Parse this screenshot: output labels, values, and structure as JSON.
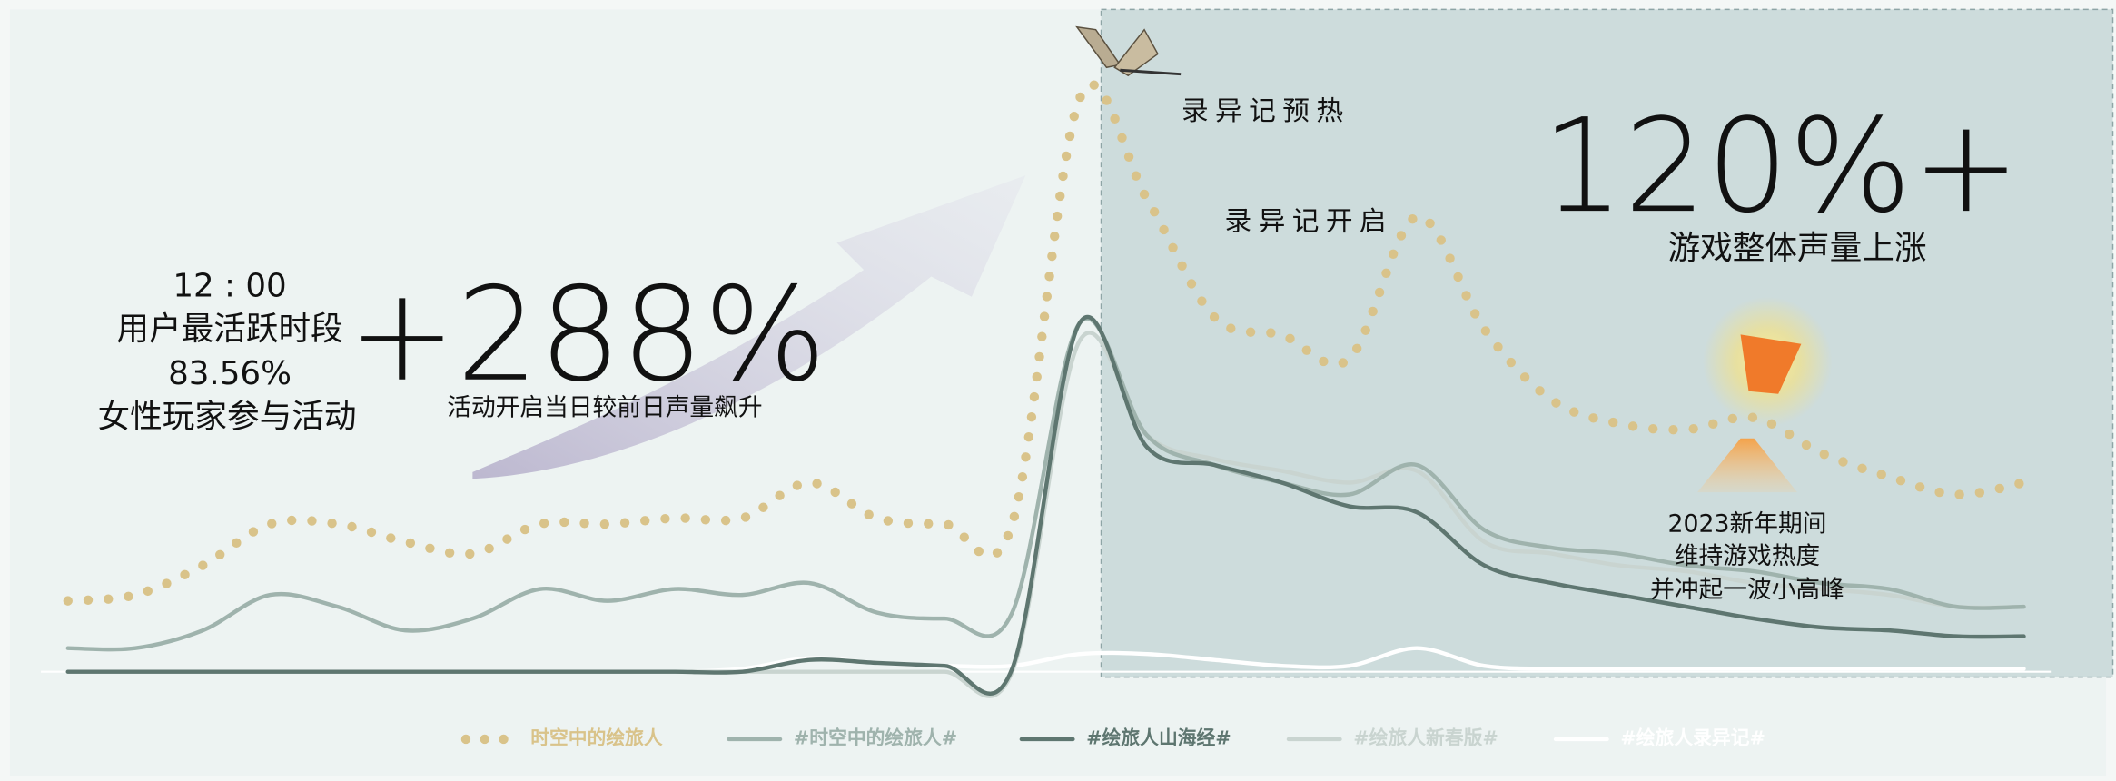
{
  "chart_data": {
    "type": "line",
    "categories": [
      null,
      null,
      null,
      null,
      null,
      null,
      null,
      null,
      null,
      null,
      null,
      null,
      null,
      null,
      null,
      null,
      null,
      null,
      null,
      null,
      null,
      null,
      null,
      null,
      null,
      null,
      null,
      null,
      null,
      null
    ],
    "ylim": [
      0,
      100
    ],
    "series": [
      {
        "name": "时空中的绘旅人",
        "color": "#d9c38a",
        "style": "dotted",
        "values": [
          12,
          13,
          18,
          25,
          25,
          22,
          20,
          25,
          25,
          26,
          26,
          32,
          26,
          25,
          25,
          97,
          80,
          60,
          57,
          53,
          77,
          58,
          46,
          42,
          41,
          43,
          37,
          33,
          30,
          32
        ]
      },
      {
        "name": "#时空中的绘旅人#",
        "color": "#9fb3ad",
        "style": "solid",
        "values": [
          4,
          4,
          7,
          13,
          11,
          7,
          9,
          14,
          12,
          14,
          13,
          15,
          10,
          9,
          10,
          59,
          40,
          35,
          32,
          30,
          35,
          24,
          21,
          20,
          18,
          17,
          15,
          14,
          11,
          11
        ]
      },
      {
        "name": "#绘旅人山海经#",
        "color": "#5e7670",
        "style": "solid",
        "values": [
          0,
          0,
          0,
          0,
          0,
          0,
          0,
          0,
          0,
          0,
          0,
          2,
          1.5,
          1,
          0.5,
          59,
          38,
          35,
          32,
          28,
          27,
          18,
          15,
          13,
          11,
          9,
          7.5,
          7,
          6,
          6
        ]
      },
      {
        "name": "#绘旅人新春版#",
        "color": "#c9d4d0",
        "style": "solid",
        "values": [
          0,
          0,
          0,
          0,
          0,
          0,
          0,
          0,
          0,
          0,
          0,
          0,
          0,
          0,
          0,
          56,
          40,
          36,
          34,
          32,
          34,
          22,
          20,
          18,
          17,
          15,
          14,
          13,
          11,
          11
        ]
      },
      {
        "name": "#绘旅人录异记#",
        "color": "#ffffff",
        "style": "solid",
        "values": [
          0,
          0,
          0,
          0,
          0,
          0,
          0,
          0,
          0,
          0,
          0.5,
          2.3,
          1.5,
          1,
          1,
          3,
          3,
          2,
          1,
          1,
          4,
          1,
          0.5,
          0.5,
          0.5,
          0.5,
          0.5,
          0.5,
          0.5,
          0.5
        ]
      }
    ],
    "annotations": [
      "录异记预热",
      "录异记开启",
      "120%+",
      "游戏整体声量上涨",
      "12 : 00",
      "用户最活跃时段",
      "83.56%",
      "女性玩家参与活动",
      "+288%",
      "活动开启当日较前日声量飙升",
      "2023新年期间",
      "维持游戏热度",
      "并冲起一波小高峰"
    ]
  }
}
